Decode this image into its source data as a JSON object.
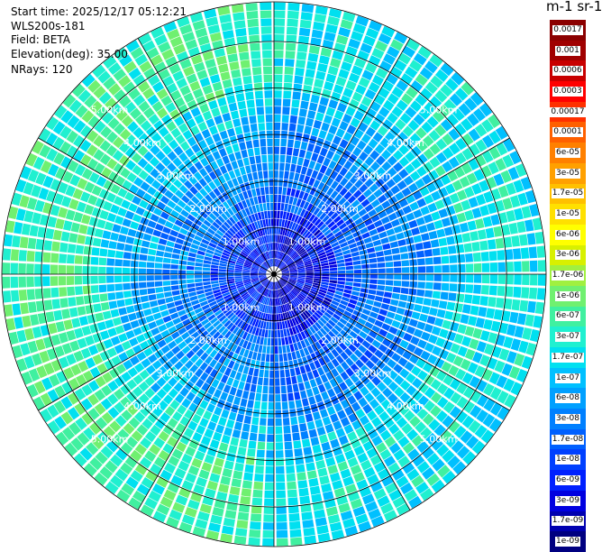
{
  "info": {
    "start_time": "Start time: 2025/12/17 05:12:21",
    "instrument": "WLS200s-181",
    "field": "Field: BETA",
    "elevation": "Elevation(deg): 35.00",
    "nrays": "NRays: 120"
  },
  "chart_data": {
    "type": "polar_ppi",
    "field": "BETA",
    "n_rays": 120,
    "range_rings_km": [
      1,
      2,
      3,
      4,
      5
    ],
    "range_labels": [
      "1.00km",
      "2.00km",
      "3.00km",
      "4.00km",
      "5.00km"
    ],
    "max_range_km": 5.85,
    "colorbar": {
      "title": "m-1 sr-1",
      "scale": "log",
      "ticks": [
        "0.0017",
        "0.001",
        "0.0006",
        "0.0003",
        "0.00017",
        "0.0001",
        "6e-05",
        "3e-05",
        "1.7e-05",
        "1e-05",
        "6e-06",
        "3e-06",
        "1.7e-06",
        "1e-06",
        "6e-07",
        "3e-07",
        "1.7e-07",
        "1e-07",
        "6e-08",
        "3e-08",
        "1.7e-08",
        "1e-08",
        "6e-09",
        "3e-09",
        "1.7e-09",
        "1e-09"
      ],
      "colors": [
        "#8b0000",
        "#a00000",
        "#c80000",
        "#ff0000",
        "#ff3000",
        "#ff6000",
        "#ff8000",
        "#ffa000",
        "#ffc000",
        "#ffe000",
        "#ffff00",
        "#d8f000",
        "#a0f040",
        "#70f070",
        "#40f0a0",
        "#20f0d0",
        "#00e0f0",
        "#00c0ff",
        "#00a0ff",
        "#0080ff",
        "#0060ff",
        "#0040ff",
        "#0020ff",
        "#0000e0",
        "#0000b0",
        "#000080"
      ]
    }
  }
}
